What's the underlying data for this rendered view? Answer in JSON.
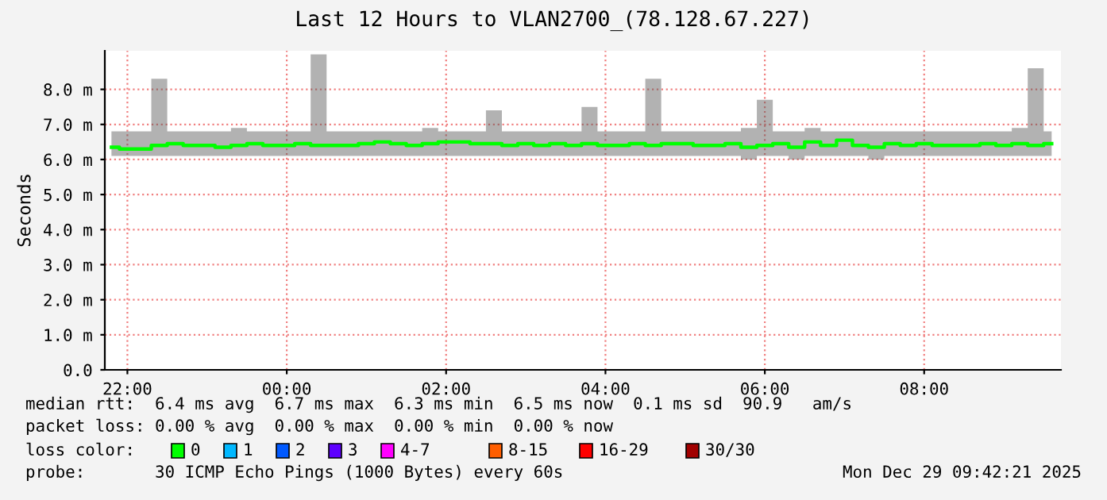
{
  "chart_data": {
    "type": "line",
    "title": "Last 12 Hours to VLAN2700_(78.128.67.227)",
    "ylabel": "Seconds",
    "x": [
      "2025-12-28T21:48",
      "2025-12-28T22:00",
      "2025-12-28T22:12",
      "2025-12-28T22:24",
      "2025-12-28T22:36",
      "2025-12-28T22:48",
      "2025-12-28T23:00",
      "2025-12-28T23:12",
      "2025-12-28T23:24",
      "2025-12-28T23:36",
      "2025-12-28T23:48",
      "2025-12-29T00:00",
      "2025-12-29T00:12",
      "2025-12-29T00:24",
      "2025-12-29T00:36",
      "2025-12-29T00:48",
      "2025-12-29T01:00",
      "2025-12-29T01:12",
      "2025-12-29T01:24",
      "2025-12-29T01:36",
      "2025-12-29T01:48",
      "2025-12-29T02:00",
      "2025-12-29T02:12",
      "2025-12-29T02:24",
      "2025-12-29T02:36",
      "2025-12-29T02:48",
      "2025-12-29T03:00",
      "2025-12-29T03:12",
      "2025-12-29T03:24",
      "2025-12-29T03:36",
      "2025-12-29T03:48",
      "2025-12-29T04:00",
      "2025-12-29T04:12",
      "2025-12-29T04:24",
      "2025-12-29T04:36",
      "2025-12-29T04:48",
      "2025-12-29T05:00",
      "2025-12-29T05:12",
      "2025-12-29T05:24",
      "2025-12-29T05:36",
      "2025-12-29T05:48",
      "2025-12-29T06:00",
      "2025-12-29T06:12",
      "2025-12-29T06:24",
      "2025-12-29T06:36",
      "2025-12-29T06:48",
      "2025-12-29T07:00",
      "2025-12-29T07:12",
      "2025-12-29T07:24",
      "2025-12-29T07:36",
      "2025-12-29T07:48",
      "2025-12-29T08:00",
      "2025-12-29T08:12",
      "2025-12-29T08:24",
      "2025-12-29T08:36",
      "2025-12-29T08:48",
      "2025-12-29T09:00",
      "2025-12-29T09:12",
      "2025-12-29T09:24",
      "2025-12-29T09:36"
    ],
    "series": [
      {
        "color": "#00ff00",
        "values": [
          6.35,
          6.3,
          6.3,
          6.4,
          6.45,
          6.4,
          6.4,
          6.35,
          6.4,
          6.45,
          6.4,
          6.4,
          6.45,
          6.4,
          6.4,
          6.4,
          6.45,
          6.5,
          6.45,
          6.4,
          6.45,
          6.5,
          6.5,
          6.45,
          6.45,
          6.4,
          6.45,
          6.4,
          6.45,
          6.4,
          6.45,
          6.4,
          6.4,
          6.45,
          6.4,
          6.45,
          6.45,
          6.4,
          6.4,
          6.45,
          6.35,
          6.4,
          6.45,
          6.35,
          6.5,
          6.4,
          6.55,
          6.4,
          6.35,
          6.45,
          6.4,
          6.45,
          6.4,
          6.4,
          6.4,
          6.45,
          6.4,
          6.45,
          6.4,
          6.45
        ],
        "lower": [
          6.1,
          6.1,
          6.1,
          6.1,
          6.1,
          6.1,
          6.1,
          6.1,
          6.1,
          6.1,
          6.1,
          6.1,
          6.1,
          6.1,
          6.1,
          6.1,
          6.1,
          6.1,
          6.1,
          6.1,
          6.1,
          6.1,
          6.1,
          6.1,
          6.1,
          6.1,
          6.1,
          6.1,
          6.1,
          6.1,
          6.1,
          6.1,
          6.1,
          6.1,
          6.1,
          6.1,
          6.1,
          6.1,
          6.1,
          6.1,
          6.0,
          6.1,
          6.1,
          6.0,
          6.1,
          6.1,
          6.1,
          6.1,
          6.0,
          6.1,
          6.1,
          6.1,
          6.1,
          6.1,
          6.1,
          6.1,
          6.1,
          6.1,
          6.1,
          6.1
        ],
        "upper": [
          6.8,
          6.8,
          6.8,
          8.3,
          6.8,
          6.8,
          6.8,
          6.8,
          6.9,
          6.8,
          6.8,
          6.8,
          6.8,
          9.0,
          6.8,
          6.8,
          6.8,
          6.8,
          6.8,
          6.8,
          6.9,
          6.8,
          6.8,
          6.8,
          7.4,
          6.8,
          6.8,
          6.8,
          6.8,
          6.8,
          7.5,
          6.8,
          6.8,
          6.8,
          8.3,
          6.8,
          6.8,
          6.8,
          6.8,
          6.8,
          6.9,
          7.7,
          6.8,
          6.8,
          6.9,
          6.8,
          6.8,
          6.8,
          6.8,
          6.8,
          6.8,
          6.8,
          6.8,
          6.8,
          6.8,
          6.8,
          6.8,
          6.9,
          8.6,
          6.8
        ]
      }
    ],
    "xlim": [
      "2025-12-28T21:43",
      "2025-12-29T09:43"
    ],
    "xticks": [
      {
        "value": "2025-12-28T22:00",
        "label": "22:00"
      },
      {
        "value": "2025-12-29T00:00",
        "label": "00:00"
      },
      {
        "value": "2025-12-29T02:00",
        "label": "02:00"
      },
      {
        "value": "2025-12-29T04:00",
        "label": "04:00"
      },
      {
        "value": "2025-12-29T06:00",
        "label": "06:00"
      },
      {
        "value": "2025-12-29T08:00",
        "label": "08:00"
      }
    ],
    "ylim": [
      0,
      9.1
    ],
    "yticks": [
      {
        "value": 0,
        "label": "0.0"
      },
      {
        "value": 1,
        "label": "1.0 m"
      },
      {
        "value": 2,
        "label": "2.0 m"
      },
      {
        "value": 3,
        "label": "3.0 m"
      },
      {
        "value": 4,
        "label": "4.0 m"
      },
      {
        "value": 5,
        "label": "5.0 m"
      },
      {
        "value": 6,
        "label": "6.0 m"
      },
      {
        "value": 7,
        "label": "7.0 m"
      },
      {
        "value": 8,
        "label": "8.0 m"
      }
    ],
    "grid": true,
    "legend": false,
    "annotations": [
      "median rtt:  6.4 ms avg  6.7 ms max  6.3 ms min  6.5 ms now  0.1 ms sd  90.9   am/s",
      "packet loss: 0.00 % avg  0.00 % max  0.00 % min  0.00 % now",
      "loss color:",
      "0",
      "1",
      "2",
      "3",
      "4-7",
      "8-15",
      "16-29",
      "30/30",
      "probe:       30 ICMP Echo Pings (1000 Bytes) every 60s",
      "Mon Dec 29 09:42:21 2025"
    ]
  }
}
